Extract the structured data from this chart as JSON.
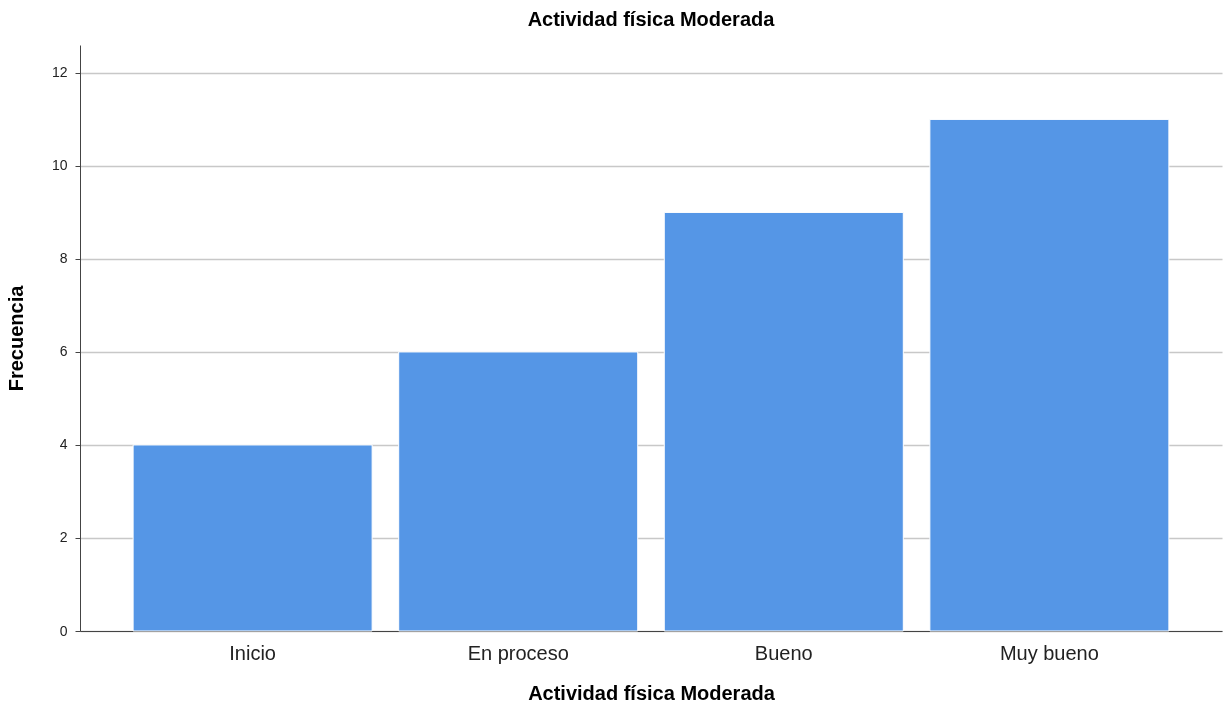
{
  "chart_data": {
    "type": "bar",
    "title": "Actividad física Moderada",
    "xlabel": "Actividad física Moderada",
    "ylabel": "Frecuencia",
    "categories": [
      "Inicio",
      "En proceso",
      "Bueno",
      "Muy bueno"
    ],
    "values": [
      4,
      6,
      9,
      11
    ],
    "color": "#5596e6",
    "ylim": [
      0,
      12.6
    ],
    "yticks": [
      0,
      2,
      4,
      6,
      8,
      10,
      12
    ],
    "grid": "y"
  }
}
